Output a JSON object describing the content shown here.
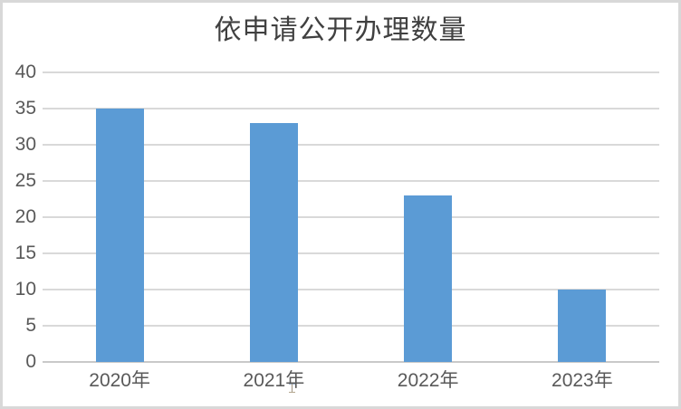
{
  "page": {
    "background": "#FFFFFF",
    "border_color": "#D8D8D8"
  },
  "chart_data": {
    "type": "bar",
    "title": "依申请公开办理数量",
    "categories": [
      "2020年",
      "2021年",
      "2022年",
      "2023年"
    ],
    "values": [
      35,
      33,
      23,
      10
    ],
    "xlabel": "",
    "ylabel": "",
    "ylim": [
      0,
      40
    ],
    "yticks": [
      0,
      5,
      10,
      15,
      20,
      25,
      30,
      35,
      40
    ],
    "grid": true,
    "legend": "none",
    "bar_color": "#5B9BD5",
    "gridline_color": "#D9D9D9",
    "zero_line_color": "#C9C9C9",
    "title_color": "#404040",
    "tick_label_color": "#595959"
  }
}
